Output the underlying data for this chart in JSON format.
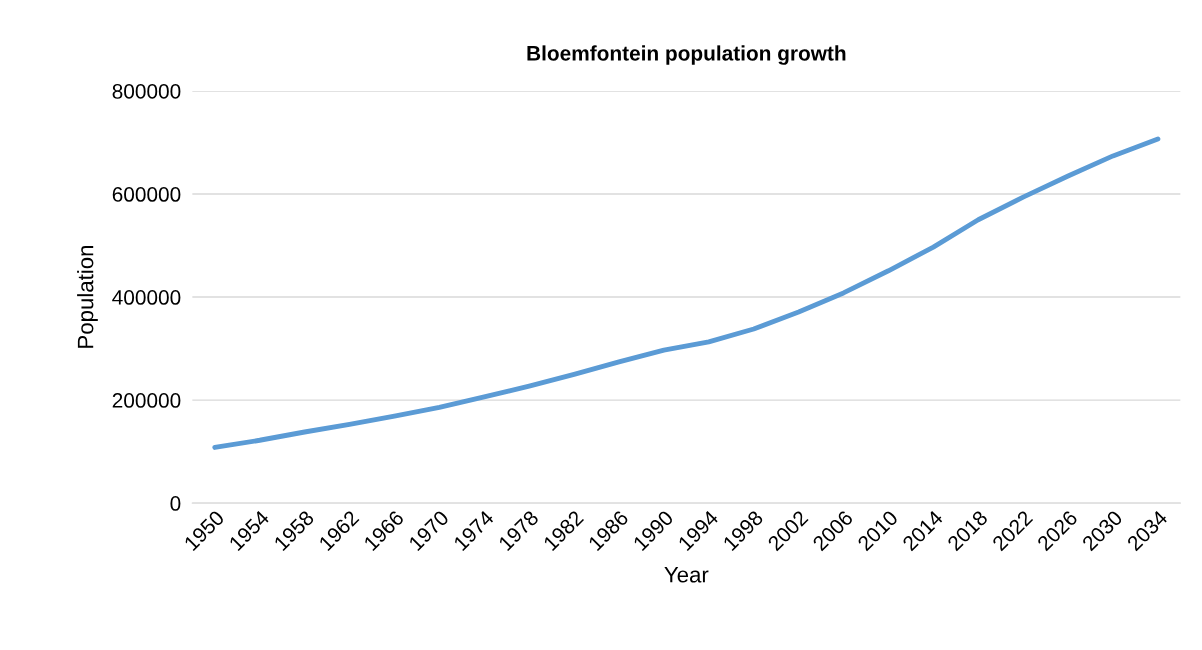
{
  "chart_data": {
    "type": "line",
    "title": "Bloemfontein population growth",
    "xlabel": "Year",
    "ylabel": "Population",
    "categories": [
      "1950",
      "1954",
      "1958",
      "1962",
      "1966",
      "1970",
      "1974",
      "1978",
      "1982",
      "1986",
      "1990",
      "1994",
      "1998",
      "2002",
      "2006",
      "2010",
      "2014",
      "2018",
      "2022",
      "2026",
      "2030",
      "2034"
    ],
    "series": [
      {
        "color": "#5b9bd5",
        "values": [
          108000,
          122000,
          138000,
          153000,
          169000,
          186000,
          206000,
          227000,
          250000,
          274000,
          297000,
          313000,
          338000,
          371000,
          408000,
          451000,
          497000,
          550000,
          594000,
          635000,
          674000,
          707000
        ]
      }
    ],
    "ylim": [
      0,
      800000
    ],
    "yticks": [
      0,
      200000,
      400000,
      600000,
      800000
    ],
    "grid": "y",
    "legend": false,
    "marker": "none",
    "line_style": "solid"
  }
}
